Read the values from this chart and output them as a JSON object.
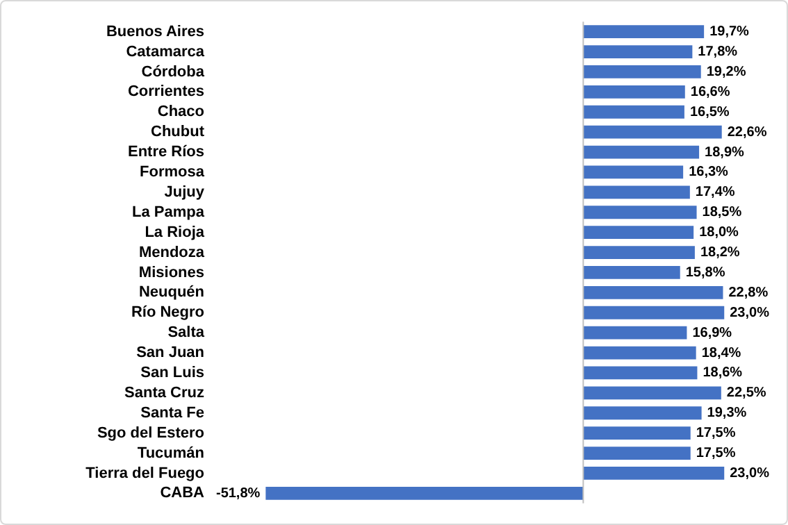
{
  "chart_data": {
    "type": "bar",
    "orientation": "horizontal",
    "categories": [
      "Buenos Aires",
      "Catamarca",
      "Córdoba",
      "Corrientes",
      "Chaco",
      "Chubut",
      "Entre Ríos",
      "Formosa",
      "Jujuy",
      "La Pampa",
      "La Rioja",
      "Mendoza",
      "Misiones",
      "Neuquén",
      "Río Negro",
      "Salta",
      "San Juan",
      "San Luis",
      "Santa Cruz",
      "Santa Fe",
      "Sgo del Estero",
      "Tucumán",
      "Tierra del Fuego",
      "CABA"
    ],
    "values": [
      19.7,
      17.8,
      19.2,
      16.6,
      16.5,
      22.6,
      18.9,
      16.3,
      17.4,
      18.5,
      18.0,
      18.2,
      15.8,
      22.8,
      23.0,
      16.9,
      18.4,
      18.6,
      22.5,
      19.3,
      17.5,
      17.5,
      23.0,
      -51.8
    ],
    "value_labels": [
      "19,7%",
      "17,8%",
      "19,2%",
      "16,6%",
      "16,5%",
      "22,6%",
      "18,9%",
      "16,3%",
      "17,4%",
      "18,5%",
      "18,0%",
      "18,2%",
      "15,8%",
      "22,8%",
      "23,0%",
      "16,9%",
      "18,4%",
      "18,6%",
      "22,5%",
      "19,3%",
      "17,5%",
      "17,5%",
      "23,0%",
      "-51,8%"
    ],
    "color": "#4472c4",
    "tick_labels": "y",
    "grid": false,
    "legend": false
  }
}
